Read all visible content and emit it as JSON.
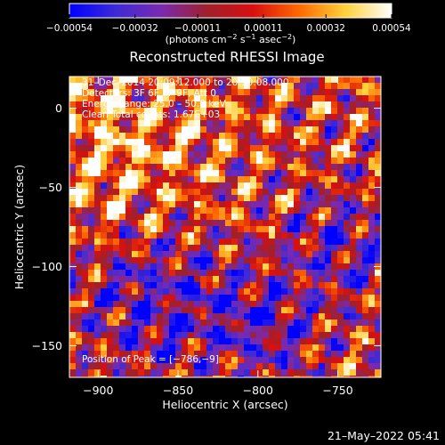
{
  "chart_data": {
    "type": "heatmap",
    "title": "Reconstructed RHESSI Image",
    "xlabel": "Heliocentric X (arcsec)",
    "ylabel": "Heliocentric Y (arcsec)",
    "xlim": [
      -918,
      -723
    ],
    "ylim": [
      -170,
      20
    ],
    "x_ticks": [
      -900,
      -850,
      -800,
      -750
    ],
    "x_tick_labels": [
      "−900",
      "−850",
      "−800",
      "−750"
    ],
    "y_ticks": [
      0,
      -50,
      -100,
      -150
    ],
    "y_tick_labels": [
      "0",
      "−50",
      "−100",
      "−150"
    ],
    "colorbar": {
      "range": [
        -0.00054,
        0.00054
      ],
      "ticks": [
        -0.00054,
        -0.00032,
        -0.00011,
        0.00011,
        0.00032,
        0.00054
      ],
      "tick_labels": [
        "−0.00054",
        "−0.00032",
        "−0.00011",
        "0.00011",
        "0.00032",
        "0.00054"
      ],
      "unit_label": "(photons cm",
      "unit_exp1": "−2",
      "unit_mid": " s",
      "unit_exp2": "−1",
      "unit_mid2": " asec",
      "unit_exp3": "−2",
      "unit_end": ")",
      "colors": [
        "#0000ff",
        "#3d2ad6",
        "#7a2ab0",
        "#a0202a",
        "#d81010",
        "#ff6a00",
        "#ffd23c",
        "#ffffff"
      ]
    },
    "annotations": {
      "time_range": "31–Dec–2014 20:09:12.000 to 20:10:08.000",
      "detectors": "Detectors: 3F 6F 7F 9F, Att 0",
      "energy": "Energy Range: 25.0 – 50.0 keV",
      "clean": "Clean     Total counts: 1.67E+03",
      "peak": "Position of Peak = [−786,−9]"
    },
    "grid": false
  },
  "footer": {
    "timestamp": "21–May–2022 05:41"
  }
}
